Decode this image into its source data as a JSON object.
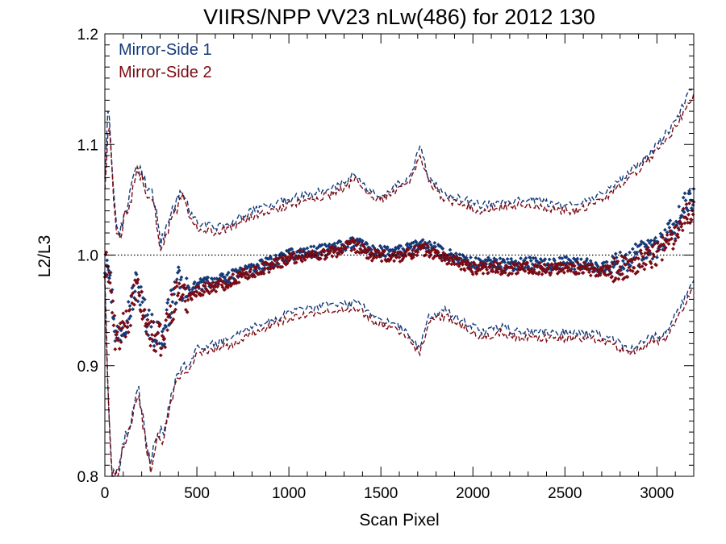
{
  "chart_data": {
    "type": "scatter",
    "title": "VIIRS/NPP VV23 nLw(486) for 2012 130",
    "xlabel": "Scan Pixel",
    "ylabel": "L2/L3",
    "xlim": [
      0,
      3200
    ],
    "ylim": [
      0.8,
      1.2
    ],
    "xticks": [
      0,
      500,
      1000,
      1500,
      2000,
      2500,
      3000
    ],
    "xtick_labels": [
      "0",
      "500",
      "1000",
      "1500",
      "2000",
      "2500",
      "3000"
    ],
    "yticks": [
      0.8,
      0.9,
      1.0,
      1.1,
      1.2
    ],
    "ytick_labels": [
      "0.8",
      "0.9",
      "1.0",
      "1.1",
      "1.2"
    ],
    "reference_line": {
      "y": 1.0,
      "style": "dotted"
    },
    "legend_placement": "top-left",
    "series": [
      {
        "name": "Mirror-Side 1",
        "color": "#143a78",
        "mean_knots": [
          [
            0,
            0.99
          ],
          [
            15,
            1.005
          ],
          [
            40,
            0.96
          ],
          [
            60,
            0.925
          ],
          [
            90,
            0.935
          ],
          [
            120,
            0.945
          ],
          [
            150,
            0.96
          ],
          [
            170,
            0.975
          ],
          [
            190,
            0.965
          ],
          [
            220,
            0.945
          ],
          [
            250,
            0.935
          ],
          [
            270,
            0.93
          ],
          [
            290,
            0.93
          ],
          [
            320,
            0.925
          ],
          [
            340,
            0.945
          ],
          [
            370,
            0.96
          ],
          [
            400,
            0.975
          ],
          [
            430,
            0.965
          ],
          [
            470,
            0.97
          ],
          [
            550,
            0.975
          ],
          [
            650,
            0.978
          ],
          [
            750,
            0.985
          ],
          [
            850,
            0.99
          ],
          [
            950,
            0.997
          ],
          [
            1050,
            1.002
          ],
          [
            1150,
            1.003
          ],
          [
            1250,
            1.006
          ],
          [
            1350,
            1.012
          ],
          [
            1450,
            1.004
          ],
          [
            1550,
            1.002
          ],
          [
            1650,
            1.005
          ],
          [
            1720,
            1.01
          ],
          [
            1800,
            1.005
          ],
          [
            1900,
            0.998
          ],
          [
            2000,
            0.992
          ],
          [
            2100,
            0.993
          ],
          [
            2200,
            0.991
          ],
          [
            2300,
            0.993
          ],
          [
            2400,
            0.991
          ],
          [
            2500,
            0.993
          ],
          [
            2600,
            0.992
          ],
          [
            2700,
            0.988
          ],
          [
            2800,
            0.993
          ],
          [
            2900,
            1.0
          ],
          [
            3000,
            1.008
          ],
          [
            3100,
            1.025
          ],
          [
            3150,
            1.045
          ],
          [
            3200,
            1.05
          ]
        ],
        "upper_knots": [
          [
            0,
            1.07
          ],
          [
            20,
            1.14
          ],
          [
            40,
            1.08
          ],
          [
            60,
            1.03
          ],
          [
            80,
            1.02
          ],
          [
            110,
            1.04
          ],
          [
            140,
            1.055
          ],
          [
            170,
            1.08
          ],
          [
            200,
            1.075
          ],
          [
            230,
            1.06
          ],
          [
            270,
            1.05
          ],
          [
            300,
            1.01
          ],
          [
            330,
            1.02
          ],
          [
            370,
            1.04
          ],
          [
            420,
            1.06
          ],
          [
            460,
            1.04
          ],
          [
            500,
            1.03
          ],
          [
            600,
            1.025
          ],
          [
            700,
            1.03
          ],
          [
            800,
            1.04
          ],
          [
            900,
            1.045
          ],
          [
            1000,
            1.05
          ],
          [
            1100,
            1.055
          ],
          [
            1200,
            1.058
          ],
          [
            1300,
            1.065
          ],
          [
            1360,
            1.075
          ],
          [
            1420,
            1.06
          ],
          [
            1500,
            1.055
          ],
          [
            1600,
            1.065
          ],
          [
            1660,
            1.07
          ],
          [
            1710,
            1.1
          ],
          [
            1760,
            1.07
          ],
          [
            1850,
            1.055
          ],
          [
            1950,
            1.05
          ],
          [
            2050,
            1.045
          ],
          [
            2150,
            1.048
          ],
          [
            2250,
            1.05
          ],
          [
            2350,
            1.05
          ],
          [
            2450,
            1.045
          ],
          [
            2550,
            1.045
          ],
          [
            2650,
            1.05
          ],
          [
            2750,
            1.06
          ],
          [
            2850,
            1.075
          ],
          [
            2950,
            1.09
          ],
          [
            3050,
            1.11
          ],
          [
            3100,
            1.12
          ],
          [
            3150,
            1.14
          ],
          [
            3200,
            1.155
          ]
        ],
        "lower_knots": [
          [
            0,
            0.98
          ],
          [
            20,
            0.86
          ],
          [
            40,
            0.8
          ],
          [
            70,
            0.8
          ],
          [
            100,
            0.83
          ],
          [
            140,
            0.85
          ],
          [
            180,
            0.88
          ],
          [
            220,
            0.84
          ],
          [
            250,
            0.81
          ],
          [
            280,
            0.84
          ],
          [
            320,
            0.84
          ],
          [
            370,
            0.88
          ],
          [
            420,
            0.9
          ],
          [
            460,
            0.9
          ],
          [
            500,
            0.915
          ],
          [
            600,
            0.92
          ],
          [
            700,
            0.925
          ],
          [
            800,
            0.935
          ],
          [
            900,
            0.94
          ],
          [
            1000,
            0.948
          ],
          [
            1100,
            0.952
          ],
          [
            1200,
            0.955
          ],
          [
            1300,
            0.955
          ],
          [
            1380,
            0.957
          ],
          [
            1450,
            0.945
          ],
          [
            1550,
            0.94
          ],
          [
            1650,
            0.93
          ],
          [
            1710,
            0.915
          ],
          [
            1760,
            0.945
          ],
          [
            1850,
            0.95
          ],
          [
            1950,
            0.94
          ],
          [
            2050,
            0.93
          ],
          [
            2150,
            0.935
          ],
          [
            2250,
            0.93
          ],
          [
            2350,
            0.93
          ],
          [
            2450,
            0.93
          ],
          [
            2550,
            0.93
          ],
          [
            2650,
            0.93
          ],
          [
            2750,
            0.925
          ],
          [
            2850,
            0.915
          ],
          [
            2950,
            0.925
          ],
          [
            3050,
            0.93
          ],
          [
            3150,
            0.96
          ],
          [
            3200,
            0.975
          ]
        ]
      },
      {
        "name": "Mirror-Side 2",
        "color": "#7a0a14",
        "mean_knots": [
          [
            0,
            0.985
          ],
          [
            15,
            0.995
          ],
          [
            40,
            0.955
          ],
          [
            60,
            0.92
          ],
          [
            90,
            0.93
          ],
          [
            120,
            0.94
          ],
          [
            150,
            0.955
          ],
          [
            170,
            0.97
          ],
          [
            190,
            0.96
          ],
          [
            220,
            0.94
          ],
          [
            250,
            0.93
          ],
          [
            270,
            0.925
          ],
          [
            290,
            0.925
          ],
          [
            320,
            0.92
          ],
          [
            340,
            0.94
          ],
          [
            370,
            0.955
          ],
          [
            400,
            0.97
          ],
          [
            430,
            0.96
          ],
          [
            470,
            0.965
          ],
          [
            550,
            0.97
          ],
          [
            650,
            0.974
          ],
          [
            750,
            0.982
          ],
          [
            850,
            0.987
          ],
          [
            950,
            0.994
          ],
          [
            1050,
            0.999
          ],
          [
            1150,
            1.0
          ],
          [
            1250,
            1.003
          ],
          [
            1350,
            1.009
          ],
          [
            1450,
            1.0
          ],
          [
            1550,
            0.998
          ],
          [
            1650,
            1.001
          ],
          [
            1720,
            1.006
          ],
          [
            1800,
            1.001
          ],
          [
            1900,
            0.994
          ],
          [
            2000,
            0.988
          ],
          [
            2100,
            0.989
          ],
          [
            2200,
            0.987
          ],
          [
            2300,
            0.989
          ],
          [
            2400,
            0.987
          ],
          [
            2500,
            0.989
          ],
          [
            2600,
            0.988
          ],
          [
            2700,
            0.984
          ],
          [
            2800,
            0.988
          ],
          [
            2900,
            0.994
          ],
          [
            3000,
            1.002
          ],
          [
            3100,
            1.018
          ],
          [
            3150,
            1.037
          ],
          [
            3200,
            1.042
          ]
        ],
        "upper_knots": [
          [
            0,
            1.06
          ],
          [
            20,
            1.125
          ],
          [
            40,
            1.07
          ],
          [
            60,
            1.025
          ],
          [
            80,
            1.015
          ],
          [
            110,
            1.035
          ],
          [
            140,
            1.05
          ],
          [
            170,
            1.075
          ],
          [
            200,
            1.07
          ],
          [
            230,
            1.055
          ],
          [
            270,
            1.045
          ],
          [
            300,
            1.005
          ],
          [
            330,
            1.015
          ],
          [
            370,
            1.035
          ],
          [
            420,
            1.055
          ],
          [
            460,
            1.035
          ],
          [
            500,
            1.025
          ],
          [
            600,
            1.02
          ],
          [
            700,
            1.025
          ],
          [
            800,
            1.035
          ],
          [
            900,
            1.04
          ],
          [
            1000,
            1.045
          ],
          [
            1100,
            1.05
          ],
          [
            1200,
            1.053
          ],
          [
            1300,
            1.06
          ],
          [
            1360,
            1.07
          ],
          [
            1420,
            1.055
          ],
          [
            1500,
            1.05
          ],
          [
            1600,
            1.06
          ],
          [
            1660,
            1.065
          ],
          [
            1710,
            1.093
          ],
          [
            1760,
            1.065
          ],
          [
            1850,
            1.05
          ],
          [
            1950,
            1.045
          ],
          [
            2050,
            1.04
          ],
          [
            2150,
            1.043
          ],
          [
            2250,
            1.045
          ],
          [
            2350,
            1.045
          ],
          [
            2450,
            1.04
          ],
          [
            2550,
            1.04
          ],
          [
            2650,
            1.045
          ],
          [
            2750,
            1.055
          ],
          [
            2850,
            1.07
          ],
          [
            2950,
            1.085
          ],
          [
            3050,
            1.105
          ],
          [
            3100,
            1.115
          ],
          [
            3150,
            1.13
          ],
          [
            3200,
            1.145
          ]
        ],
        "lower_knots": [
          [
            0,
            0.975
          ],
          [
            20,
            0.855
          ],
          [
            40,
            0.8
          ],
          [
            70,
            0.8
          ],
          [
            100,
            0.825
          ],
          [
            140,
            0.845
          ],
          [
            180,
            0.875
          ],
          [
            220,
            0.835
          ],
          [
            250,
            0.805
          ],
          [
            280,
            0.835
          ],
          [
            320,
            0.835
          ],
          [
            370,
            0.875
          ],
          [
            420,
            0.895
          ],
          [
            460,
            0.895
          ],
          [
            500,
            0.91
          ],
          [
            600,
            0.915
          ],
          [
            700,
            0.92
          ],
          [
            800,
            0.93
          ],
          [
            900,
            0.935
          ],
          [
            1000,
            0.943
          ],
          [
            1100,
            0.947
          ],
          [
            1200,
            0.95
          ],
          [
            1300,
            0.95
          ],
          [
            1380,
            0.952
          ],
          [
            1450,
            0.94
          ],
          [
            1550,
            0.935
          ],
          [
            1650,
            0.925
          ],
          [
            1710,
            0.91
          ],
          [
            1760,
            0.94
          ],
          [
            1850,
            0.945
          ],
          [
            1950,
            0.935
          ],
          [
            2050,
            0.925
          ],
          [
            2150,
            0.93
          ],
          [
            2250,
            0.925
          ],
          [
            2350,
            0.925
          ],
          [
            2450,
            0.925
          ],
          [
            2550,
            0.925
          ],
          [
            2650,
            0.925
          ],
          [
            2750,
            0.92
          ],
          [
            2850,
            0.91
          ],
          [
            2950,
            0.92
          ],
          [
            3050,
            0.925
          ],
          [
            3150,
            0.955
          ],
          [
            3200,
            0.97
          ]
        ]
      }
    ]
  }
}
